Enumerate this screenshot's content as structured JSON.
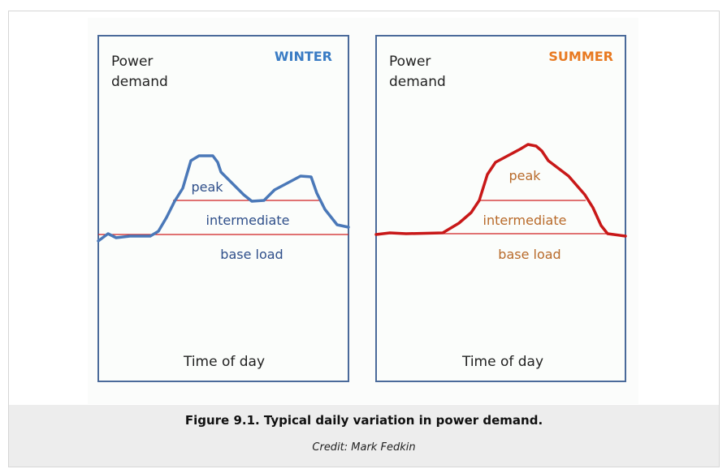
{
  "figure": {
    "panels": [
      {
        "season": "WINTER",
        "season_color": "#3a7cc4",
        "y_label_line1": "Power",
        "y_label_line2": "demand",
        "x_label": "Time of day",
        "curve_color": "#4a78b8",
        "label_color": "#2f4f8a",
        "labels": {
          "peak": "peak",
          "intermediate": "intermediate",
          "base": "base load"
        }
      },
      {
        "season": "SUMMER",
        "season_color": "#e87a22",
        "y_label_line1": "Power",
        "y_label_line2": "demand",
        "x_label": "Time of day",
        "curve_color": "#c81818",
        "label_color": "#b86a2a",
        "labels": {
          "peak": "peak",
          "intermediate": "intermediate",
          "base": "base load"
        }
      }
    ],
    "caption": "Figure 9.1. Typical daily variation in power demand.",
    "credit": "Credit: Mark Fedkin"
  }
}
